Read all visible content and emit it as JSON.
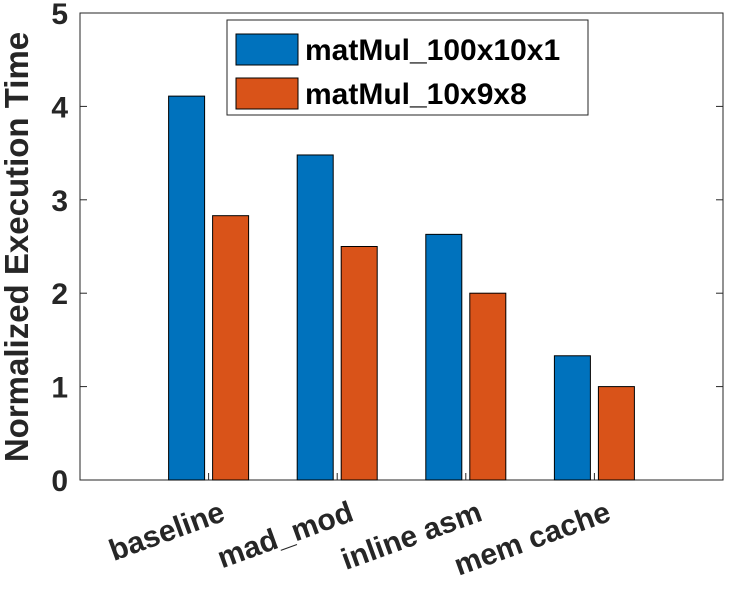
{
  "chart_data": {
    "type": "bar",
    "title": "",
    "xlabel": "",
    "ylabel": "Normalized Execution Time",
    "categories": [
      "baseline",
      "mad_mod",
      "inline asm",
      "mem cache"
    ],
    "series": [
      {
        "name": "matMul_100x10x1",
        "values": [
          4.11,
          3.48,
          2.63,
          1.33
        ],
        "color": "#0072BD"
      },
      {
        "name": "matMul_10x9x8",
        "values": [
          2.83,
          2.5,
          2.0,
          1.0
        ],
        "color": "#D95319"
      }
    ],
    "ylim": [
      0,
      5
    ],
    "yticks": [
      "0",
      "1",
      "2",
      "3",
      "4",
      "5"
    ],
    "grid": false,
    "legend_position": "top-center"
  }
}
